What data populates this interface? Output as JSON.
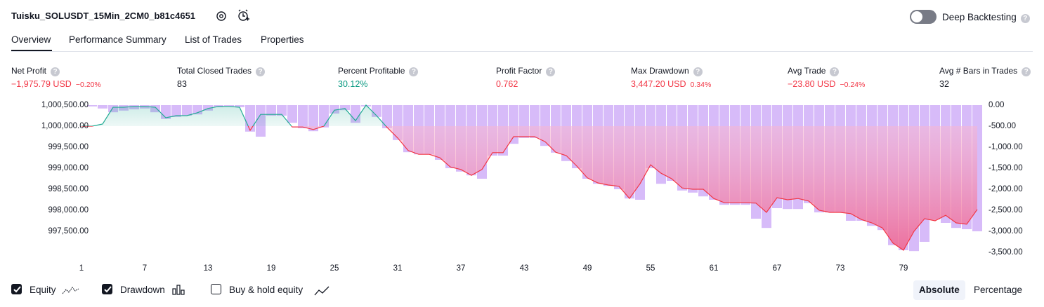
{
  "header": {
    "title": "Tuisku_SOLUSDT_15Min_2CM0_b81c4651",
    "toggle_label": "Deep Backtesting"
  },
  "tabs": [
    "Overview",
    "Performance Summary",
    "List of Trades",
    "Properties"
  ],
  "stats": [
    {
      "label": "Net Profit",
      "value": "−1,975.79 USD",
      "change": "−0.20%"
    },
    {
      "label": "Total Closed Trades",
      "value": "83"
    },
    {
      "label": "Percent Profitable",
      "value": "30.12%"
    },
    {
      "label": "Profit Factor",
      "value": "0.762"
    },
    {
      "label": "Max Drawdown",
      "value": "3,447.20 USD",
      "change": "0.34%"
    },
    {
      "label": "Avg Trade",
      "value": "−23.80 USD",
      "change": "−0.24%"
    },
    {
      "label": "Avg # Bars in Trades",
      "value": "32"
    }
  ],
  "chart_data": {
    "type": "line",
    "x": [
      1,
      2,
      3,
      4,
      5,
      6,
      7,
      8,
      9,
      10,
      11,
      12,
      13,
      14,
      15,
      16,
      17,
      18,
      19,
      20,
      21,
      22,
      23,
      24,
      25,
      26,
      27,
      28,
      29,
      30,
      31,
      32,
      33,
      34,
      35,
      36,
      37,
      38,
      39,
      40,
      41,
      42,
      43,
      44,
      45,
      46,
      47,
      48,
      49,
      50,
      51,
      52,
      53,
      54,
      55,
      56,
      57,
      58,
      59,
      60,
      61,
      62,
      63,
      64,
      65,
      66,
      67,
      68,
      69,
      70,
      71,
      72,
      73,
      74,
      75,
      76,
      77,
      78,
      79,
      80,
      81,
      82,
      83,
      84,
      85,
      86
    ],
    "series": [
      {
        "name": "Equity",
        "color": "#22ab94",
        "values": [
          1000000,
          1000000,
          1000050,
          1000450,
          1000450,
          1000470,
          1000470,
          1000450,
          1000200,
          1000250,
          1000250,
          1000320,
          1000420,
          1000470,
          1000470,
          1000450,
          999900,
          1000280,
          1000280,
          1000280,
          999980,
          999980,
          999920,
          1000000,
          1000380,
          1000420,
          1000130,
          1000500,
          1000250,
          999970,
          999720,
          999420,
          999330,
          999330,
          999250,
          999030,
          998970,
          998830,
          998970,
          999370,
          999370,
          999750,
          999750,
          999750,
          999630,
          999380,
          999300,
          999050,
          998770,
          998650,
          998600,
          998570,
          998280,
          998630,
          999080,
          998880,
          998750,
          998530,
          998500,
          998500,
          998280,
          998180,
          998180,
          998180,
          998170,
          997950,
          998300,
          998250,
          998280,
          998220,
          998000,
          997950,
          997950,
          997920,
          997780,
          997700,
          997580,
          997220,
          997050,
          997500,
          997800,
          997750,
          997880,
          997700,
          997670,
          998020
        ]
      },
      {
        "name": "Drawdown",
        "color": "#c9a4f7",
        "axis": "y2",
        "values": [
          0,
          -30,
          -80,
          -170,
          -130,
          -100,
          -80,
          -170,
          -330,
          -280,
          -250,
          -220,
          -130,
          -50,
          -30,
          -50,
          -630,
          -750,
          -250,
          -250,
          -420,
          -550,
          -620,
          -530,
          -200,
          -120,
          -420,
          -30,
          -280,
          -550,
          -830,
          -1120,
          -1170,
          -1170,
          -1300,
          -1500,
          -1580,
          -1670,
          -1750,
          -1200,
          -1200,
          -920,
          -780,
          -780,
          -970,
          -1130,
          -1330,
          -1500,
          -1750,
          -1870,
          -1920,
          -2000,
          -2220,
          -2250,
          -1500,
          -1870,
          -1800,
          -2030,
          -2080,
          -2170,
          -2250,
          -2370,
          -2370,
          -2370,
          -2700,
          -2920,
          -2450,
          -2470,
          -2470,
          -2330,
          -2550,
          -2550,
          -2550,
          -2750,
          -2750,
          -2870,
          -2970,
          -3330,
          -3450,
          -3470,
          -3250,
          -2720,
          -2800,
          -2920,
          -2950,
          -3000
        ]
      }
    ],
    "xlim": [
      0.5,
      86.5
    ],
    "xticks": [
      1,
      7,
      13,
      19,
      25,
      31,
      37,
      43,
      49,
      55,
      61,
      67,
      73,
      79
    ],
    "ylim": [
      997000,
      1000500
    ],
    "yticks": [
      {
        "value": 1000500,
        "label": "1,000,500.00"
      },
      {
        "value": 1000000,
        "label": "1,000,000.00"
      },
      {
        "value": 999500,
        "label": "999,500.00"
      },
      {
        "value": 999000,
        "label": "999,000.00"
      },
      {
        "value": 998500,
        "label": "998,500.00"
      },
      {
        "value": 998000,
        "label": "998,000.00"
      },
      {
        "value": 997500,
        "label": "997,500.00"
      }
    ],
    "y2lim": [
      -3500,
      0
    ],
    "y2ticks": [
      {
        "value": 0,
        "label": "0.00"
      },
      {
        "value": -500,
        "label": "-500.00"
      },
      {
        "value": -1000,
        "label": "-1,000.00"
      },
      {
        "value": -1500,
        "label": "-1,500.00"
      },
      {
        "value": -2000,
        "label": "-2,000.00"
      },
      {
        "value": -2500,
        "label": "-2,500.00"
      },
      {
        "value": -3000,
        "label": "-3,000.00"
      },
      {
        "value": -3500,
        "label": "-3,500.00"
      }
    ],
    "negative_color": "#f23645"
  },
  "footer": {
    "buy_hold": "Buy & hold equity",
    "buttons": [
      "Absolute",
      "Percentage"
    ]
  }
}
